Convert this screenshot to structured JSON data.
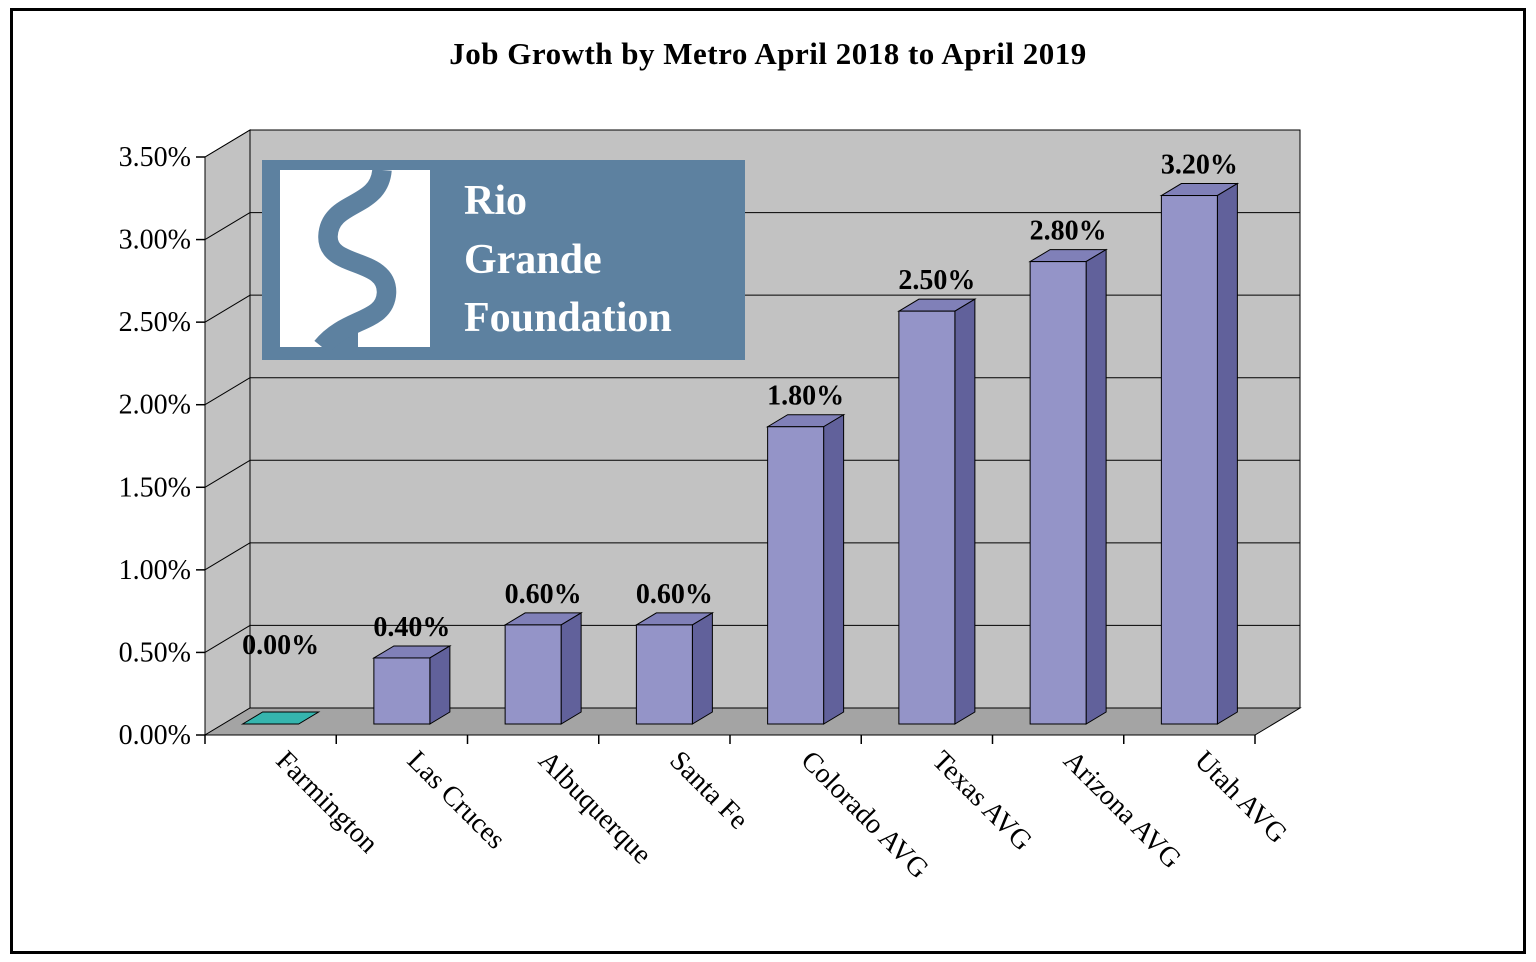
{
  "page": {
    "title": "Job Growth by Metro April 2018 to April 2019"
  },
  "logo": {
    "lines": [
      "Rio",
      "Grande",
      "Foundation"
    ]
  },
  "chart_data": {
    "type": "bar",
    "style": "3d-bar",
    "title": "Job Growth by Metro April 2018 to April 2019",
    "categories": [
      "Farmington",
      "Las Cruces",
      "Albuquerque",
      "Santa Fe",
      "Colorado AVG",
      "Texas AVG",
      "Arizona AVG",
      "Utah AVG"
    ],
    "values": [
      0.0,
      0.4,
      0.6,
      0.6,
      1.8,
      2.5,
      2.8,
      3.2
    ],
    "value_labels": [
      "0.00%",
      "0.40%",
      "0.60%",
      "0.60%",
      "1.80%",
      "2.50%",
      "2.80%",
      "3.20%"
    ],
    "ytick_values": [
      0,
      0.5,
      1,
      1.5,
      2,
      2.5,
      3,
      3.5
    ],
    "ytick_labels": [
      "0.00%",
      "0.50%",
      "1.00%",
      "1.50%",
      "2.00%",
      "2.50%",
      "3.00%",
      "3.50%"
    ],
    "ylim": [
      0,
      3.5
    ],
    "xlabel": "",
    "ylabel": "",
    "grid": true,
    "legend": false,
    "colors": {
      "bar_front": "#9494c8",
      "bar_side": "#61619b",
      "bar_top": "#8080b8",
      "zero_bar": "#35b5ae",
      "wall": "#c2c2c2",
      "floor": "#a4a4a4",
      "gridline": "#000000",
      "text": "#000000",
      "logo_bg": "#5d81a0"
    }
  }
}
